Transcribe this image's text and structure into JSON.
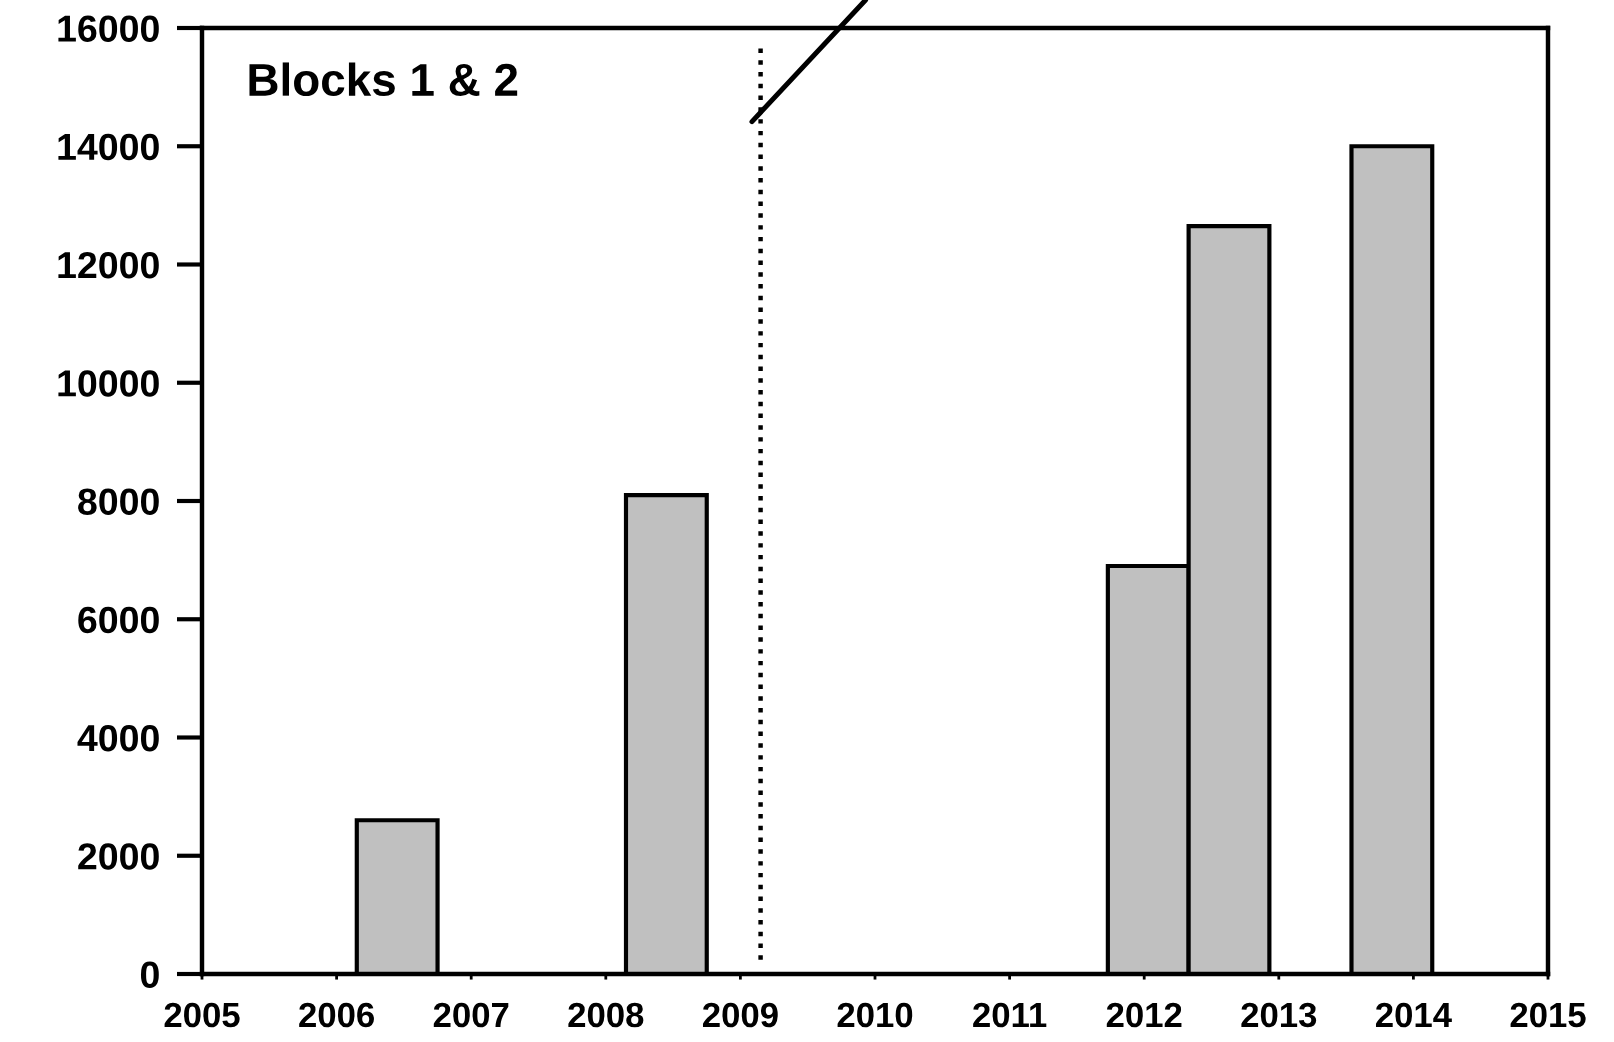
{
  "chart_data": {
    "type": "bar",
    "title": "Blocks 1 & 2",
    "x": [
      2006.45,
      2008.45,
      2012.03,
      2012.63,
      2013.84
    ],
    "values": [
      2600,
      8100,
      6900,
      12650,
      14000
    ],
    "color": "#c0c0c0",
    "xlim": [
      2005,
      2015
    ],
    "xticks": [
      2005,
      2006,
      2007,
      2008,
      2009,
      2010,
      2011,
      2012,
      2013,
      2014,
      2015
    ],
    "ylim": [
      0,
      16000
    ],
    "yticks": [
      0,
      2000,
      4000,
      6000,
      8000,
      10000,
      12000,
      14000,
      16000
    ],
    "ref_lines": [
      {
        "axis": "x",
        "value": 2009.15,
        "line_style": "dotted",
        "color": "#000000"
      }
    ]
  }
}
